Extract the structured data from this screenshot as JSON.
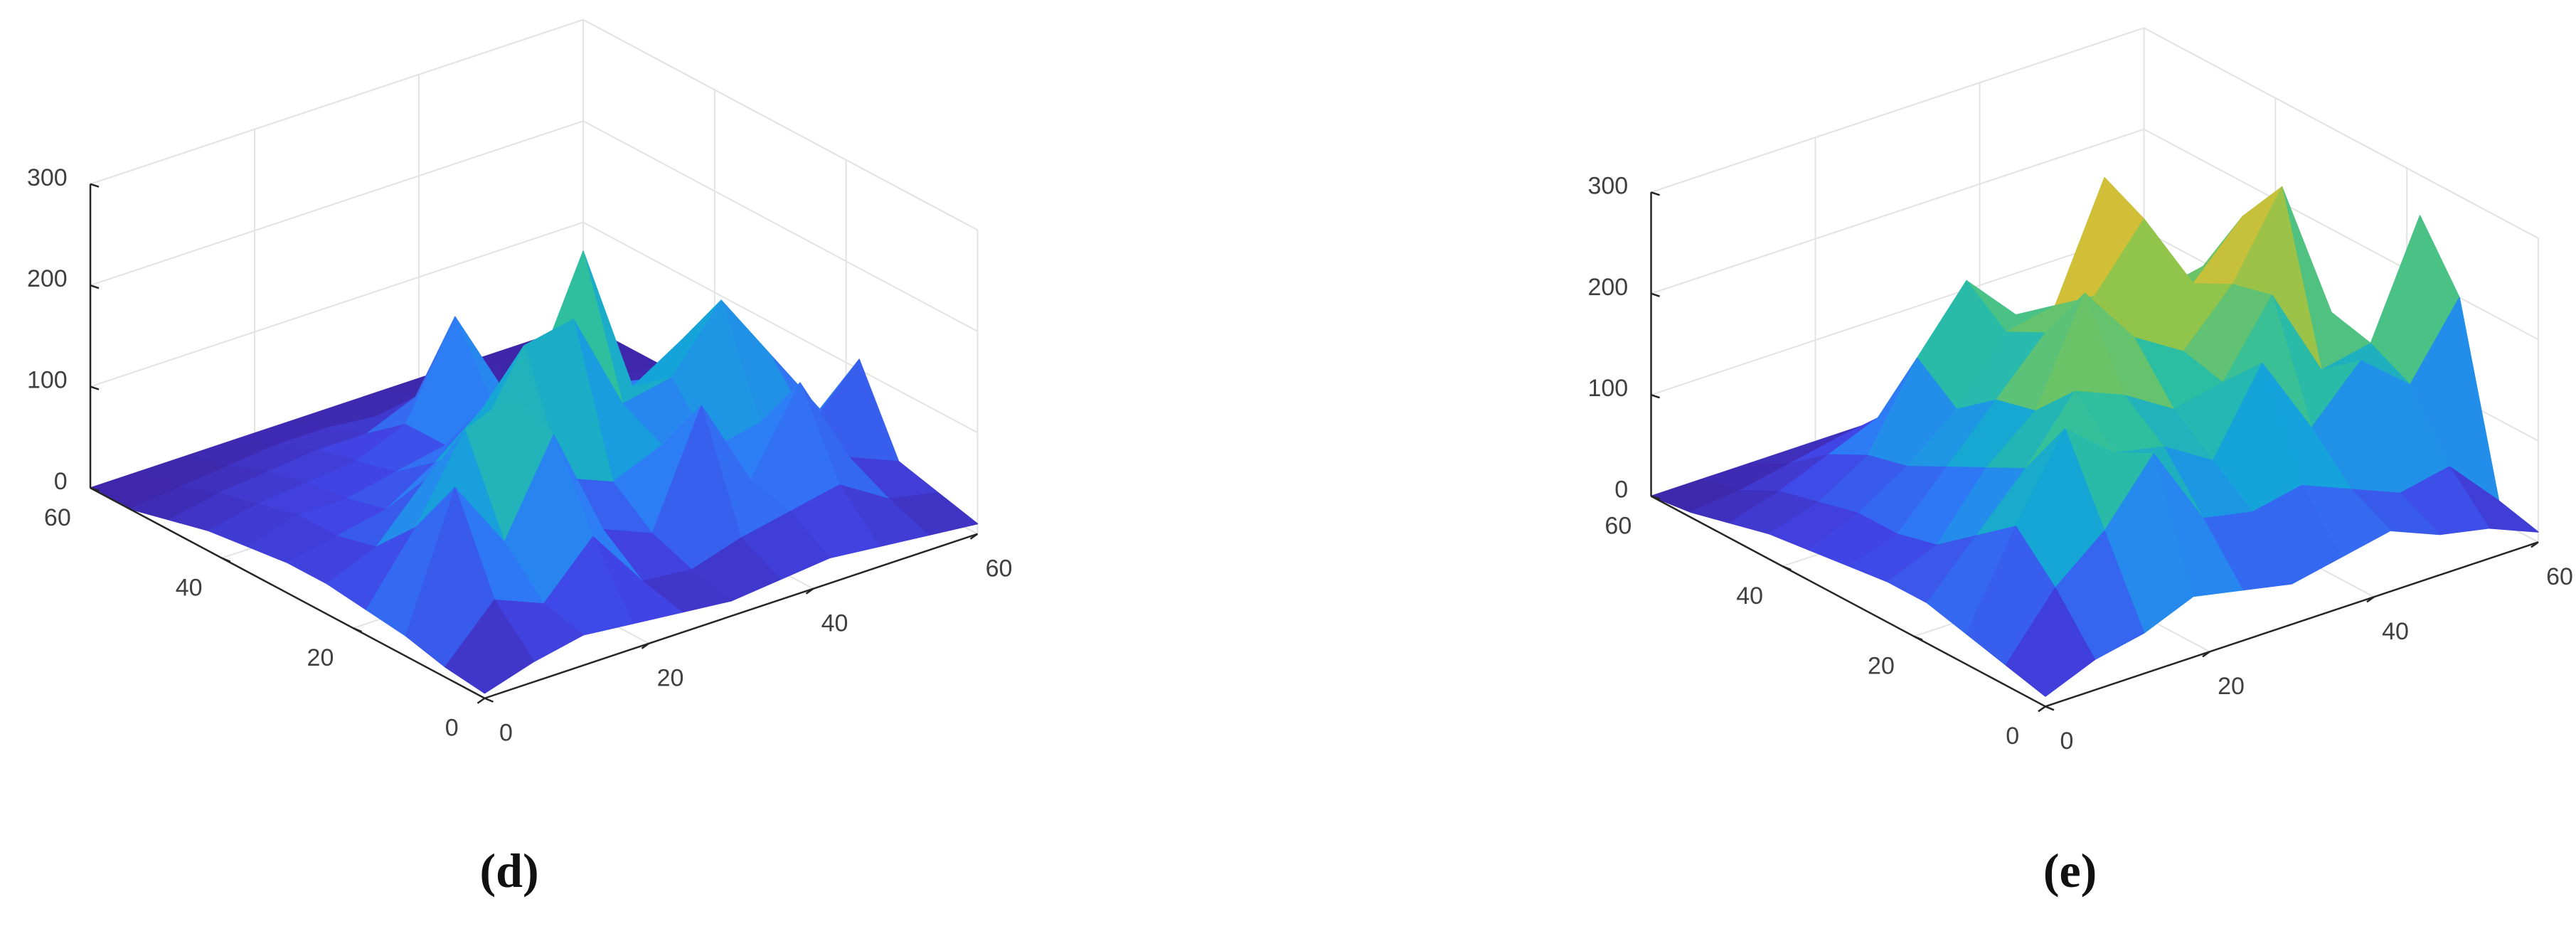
{
  "chart_data": [
    {
      "type": "surface",
      "caption": "(d)",
      "x": [
        0,
        6,
        12,
        18,
        24,
        30,
        36,
        42,
        48,
        54,
        60
      ],
      "y": [
        0,
        6,
        12,
        18,
        24,
        30,
        36,
        42,
        48,
        54,
        60
      ],
      "z": [
        [
          5,
          20,
          30,
          25,
          20,
          15,
          20,
          25,
          20,
          15,
          10
        ],
        [
          10,
          60,
          40,
          90,
          30,
          25,
          40,
          50,
          60,
          30,
          20
        ],
        [
          20,
          150,
          80,
          170,
          60,
          40,
          150,
          60,
          140,
          50,
          30
        ],
        [
          25,
          90,
          170,
          190,
          90,
          70,
          90,
          70,
          80,
          60,
          110
        ],
        [
          30,
          50,
          100,
          120,
          200,
          210,
          110,
          120,
          180,
          110,
          40
        ],
        [
          30,
          40,
          50,
          80,
          120,
          130,
          240,
          90,
          120,
          60,
          20
        ],
        [
          25,
          40,
          40,
          50,
          60,
          80,
          100,
          70,
          60,
          30,
          10
        ],
        [
          20,
          30,
          35,
          40,
          60,
          150,
          60,
          40,
          30,
          15,
          5
        ],
        [
          10,
          20,
          25,
          30,
          30,
          50,
          30,
          20,
          10,
          5,
          0
        ],
        [
          0,
          5,
          10,
          15,
          15,
          10,
          10,
          5,
          0,
          0,
          0
        ],
        [
          0,
          0,
          0,
          0,
          0,
          0,
          0,
          0,
          0,
          0,
          0
        ]
      ],
      "xlim": [
        0,
        60
      ],
      "ylim": [
        0,
        60
      ],
      "zlim": [
        0,
        300
      ],
      "xticks": [
        0,
        20,
        40,
        60
      ],
      "yticks": [
        0,
        20,
        40,
        60
      ],
      "zticks": [
        0,
        100,
        200,
        300
      ],
      "grid": true,
      "colormap": [
        "#3e26a8",
        "#4145e6",
        "#2e7cf6",
        "#14a5d8",
        "#2dbfa0",
        "#8ac54c",
        "#e6bd31",
        "#f9dc24"
      ]
    },
    {
      "type": "surface",
      "caption": "(e)",
      "x": [
        0,
        6,
        12,
        18,
        24,
        30,
        36,
        42,
        48,
        54,
        60
      ],
      "y": [
        0,
        6,
        12,
        18,
        24,
        30,
        36,
        42,
        48,
        54,
        60
      ],
      "z": [
        [
          10,
          30,
          40,
          60,
          50,
          40,
          50,
          60,
          40,
          30,
          10
        ],
        [
          20,
          80,
          120,
          180,
          100,
          90,
          100,
          80,
          60,
          70,
          20
        ],
        [
          30,
          120,
          200,
          160,
          150,
          120,
          200,
          120,
          170,
          130,
          200
        ],
        [
          40,
          90,
          140,
          200,
          180,
          150,
          160,
          230,
          140,
          150,
          260
        ],
        [
          40,
          60,
          120,
          160,
          260,
          200,
          170,
          220,
          300,
          160,
          60
        ],
        [
          35,
          50,
          100,
          150,
          200,
          220,
          280,
          200,
          250,
          120,
          30
        ],
        [
          30,
          50,
          80,
          120,
          180,
          190,
          300,
          170,
          180,
          80,
          20
        ],
        [
          25,
          40,
          70,
          150,
          210,
          160,
          120,
          100,
          70,
          40,
          10
        ],
        [
          15,
          30,
          50,
          70,
          90,
          80,
          60,
          40,
          30,
          10,
          5
        ],
        [
          5,
          10,
          20,
          30,
          30,
          20,
          15,
          10,
          5,
          5,
          0
        ],
        [
          0,
          0,
          0,
          0,
          0,
          0,
          0,
          0,
          0,
          0,
          0
        ]
      ],
      "xlim": [
        0,
        60
      ],
      "ylim": [
        0,
        60
      ],
      "zlim": [
        0,
        300
      ],
      "xticks": [
        0,
        20,
        40,
        60
      ],
      "yticks": [
        0,
        20,
        40,
        60
      ],
      "zticks": [
        0,
        100,
        200,
        300
      ],
      "grid": true,
      "colormap": [
        "#3e26a8",
        "#4145e6",
        "#2e7cf6",
        "#14a5d8",
        "#2dbfa0",
        "#8ac54c",
        "#e6bd31",
        "#f9dc24"
      ]
    }
  ]
}
